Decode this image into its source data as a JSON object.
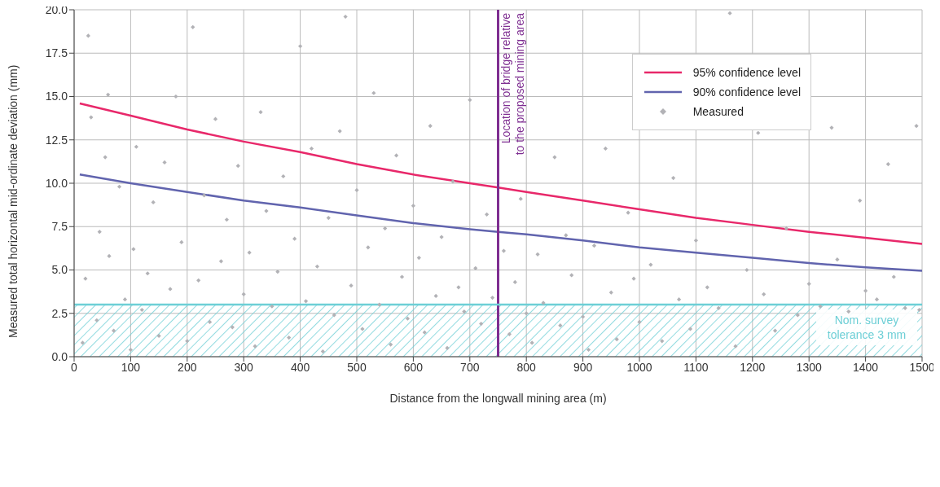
{
  "chart_data": {
    "type": "scatter",
    "xlabel": "Distance from the longwall mining area (m)",
    "ylabel": "Measured total horizontal mid-ordinate deviation (mm)",
    "xlim": [
      0,
      1500
    ],
    "xticks": [
      0,
      100,
      200,
      300,
      400,
      500,
      600,
      700,
      800,
      900,
      1000,
      1100,
      1200,
      1300,
      1400,
      1500
    ],
    "ylim": [
      0,
      20
    ],
    "yticks": [
      {
        "value": 0,
        "label": "0.0"
      },
      2.5,
      {
        "value": 5,
        "label": "5.0"
      },
      7.5,
      {
        "value": 10,
        "label": "10.0"
      },
      12.5,
      {
        "value": 15,
        "label": "15.0"
      },
      17.5,
      {
        "value": 20,
        "label": "20.0"
      }
    ],
    "grid": true,
    "legend": "top right",
    "series": [
      {
        "name": "95% confidence level",
        "type": "line",
        "color": "#e8286a",
        "marker": "none",
        "line_style": "solid",
        "x": [
          10,
          100,
          200,
          300,
          400,
          500,
          600,
          700,
          750,
          800,
          900,
          1000,
          1100,
          1200,
          1300,
          1400,
          1500
        ],
        "values": [
          14.6,
          13.9,
          13.1,
          12.4,
          11.8,
          11.1,
          10.5,
          10.0,
          9.75,
          9.5,
          9.0,
          8.5,
          8.0,
          7.6,
          7.2,
          6.85,
          6.5
        ]
      },
      {
        "name": "90% confidence level",
        "type": "line",
        "color": "#6164ae",
        "marker": "none",
        "line_style": "solid",
        "x": [
          10,
          100,
          200,
          300,
          400,
          500,
          600,
          700,
          750,
          800,
          900,
          1000,
          1100,
          1200,
          1300,
          1400,
          1500
        ],
        "values": [
          10.5,
          10.0,
          9.5,
          9.0,
          8.6,
          8.15,
          7.7,
          7.35,
          7.2,
          7.05,
          6.7,
          6.3,
          6.0,
          5.7,
          5.4,
          5.15,
          4.95
        ]
      },
      {
        "name": "Measured",
        "color": "#b2b2b6",
        "marker": "diamond",
        "x": [
          15,
          20,
          25,
          30,
          40,
          45,
          55,
          60,
          62,
          70,
          80,
          90,
          100,
          105,
          110,
          120,
          130,
          140,
          150,
          160,
          170,
          180,
          190,
          200,
          210,
          220,
          230,
          240,
          250,
          260,
          270,
          280,
          290,
          300,
          310,
          320,
          330,
          340,
          350,
          360,
          370,
          380,
          390,
          400,
          410,
          420,
          430,
          440,
          450,
          460,
          470,
          480,
          490,
          500,
          510,
          520,
          530,
          540,
          550,
          560,
          570,
          580,
          590,
          600,
          610,
          620,
          630,
          640,
          650,
          660,
          670,
          680,
          690,
          700,
          710,
          720,
          730,
          740,
          760,
          770,
          780,
          790,
          800,
          810,
          820,
          830,
          850,
          860,
          870,
          880,
          900,
          910,
          920,
          940,
          950,
          960,
          980,
          990,
          1000,
          1020,
          1040,
          1060,
          1070,
          1090,
          1100,
          1120,
          1140,
          1160,
          1170,
          1190,
          1210,
          1220,
          1240,
          1260,
          1280,
          1300,
          1320,
          1340,
          1350,
          1370,
          1390,
          1400,
          1420,
          1440,
          1450,
          1470,
          1490,
          1495
        ],
        "values": [
          0.8,
          4.5,
          18.5,
          13.8,
          2.1,
          7.2,
          11.5,
          15.1,
          5.8,
          1.5,
          9.8,
          3.3,
          0.4,
          6.2,
          12.1,
          2.7,
          4.8,
          8.9,
          1.2,
          11.2,
          3.9,
          15.0,
          6.6,
          0.9,
          19.0,
          4.4,
          9.3,
          2.0,
          13.7,
          5.5,
          7.9,
          1.7,
          11.0,
          3.6,
          6.0,
          0.6,
          14.1,
          8.4,
          2.9,
          4.9,
          10.4,
          1.1,
          6.8,
          17.9,
          3.2,
          12.0,
          5.2,
          0.3,
          8.0,
          2.4,
          13.0,
          19.6,
          4.1,
          9.6,
          1.6,
          6.3,
          15.2,
          3.0,
          7.4,
          0.7,
          11.6,
          4.6,
          2.2,
          8.7,
          5.7,
          1.4,
          13.3,
          3.5,
          6.9,
          0.5,
          10.1,
          4.0,
          2.6,
          14.8,
          5.1,
          1.9,
          8.2,
          3.4,
          6.1,
          1.3,
          4.3,
          9.1,
          2.5,
          0.8,
          5.9,
          3.1,
          11.5,
          1.8,
          7.0,
          4.7,
          2.3,
          0.4,
          6.4,
          12.0,
          3.7,
          1.0,
          8.3,
          4.5,
          2.0,
          5.3,
          0.9,
          10.3,
          3.3,
          1.6,
          6.7,
          4.0,
          2.8,
          19.8,
          0.6,
          5.0,
          12.9,
          3.6,
          1.5,
          7.4,
          2.4,
          4.2,
          2.9,
          13.2,
          5.6,
          2.6,
          9.0,
          3.8,
          3.3,
          11.1,
          4.6,
          2.8,
          13.3,
          2.7
        ]
      }
    ],
    "ref_lines": [
      {
        "axis": "x",
        "value": 750,
        "label": "Location of bridge relative\nto the proposed mining area",
        "color": "#7e2e91",
        "line_style": "solid"
      },
      {
        "axis": "y",
        "value": 3,
        "color": "#6dcfd6",
        "line_style": "solid"
      }
    ],
    "bands": [
      {
        "axis": "y",
        "from": 0,
        "to": 3,
        "label": "Nom. survey\ntolerance 3 mm",
        "color": "#6dcfd6"
      }
    ]
  }
}
